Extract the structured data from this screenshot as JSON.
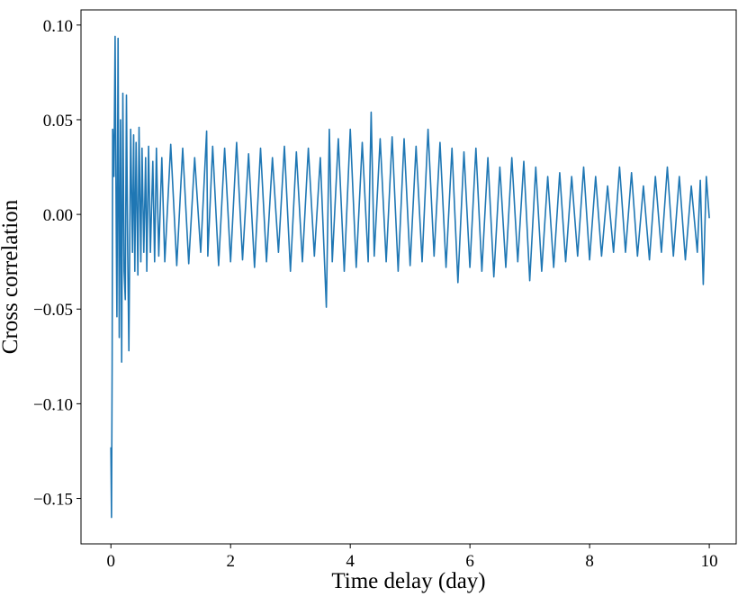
{
  "chart_data": {
    "type": "line",
    "title": "",
    "xlabel": "Time delay  (day)",
    "ylabel": "Cross correlation",
    "xlim": [
      -0.5,
      10.45
    ],
    "ylim": [
      -0.174,
      0.108
    ],
    "xticks": [
      0,
      2,
      4,
      6,
      8,
      10
    ],
    "xtick_labels": [
      "0",
      "2",
      "4",
      "6",
      "8",
      "10"
    ],
    "yticks": [
      -0.15,
      -0.1,
      -0.05,
      0.0,
      0.05,
      0.1
    ],
    "ytick_labels": [
      "−0.15",
      "−0.10",
      "−0.05",
      "0.00",
      "0.05",
      "0.10"
    ],
    "grid": false,
    "series": [
      {
        "color": "#1f77b4",
        "x": [
          0.0,
          0.01,
          0.02,
          0.03,
          0.05,
          0.07,
          0.09,
          0.1,
          0.12,
          0.14,
          0.16,
          0.18,
          0.2,
          0.22,
          0.24,
          0.26,
          0.28,
          0.3,
          0.33,
          0.36,
          0.38,
          0.4,
          0.42,
          0.45,
          0.47,
          0.5,
          0.52,
          0.55,
          0.58,
          0.6,
          0.63,
          0.66,
          0.7,
          0.73,
          0.76,
          0.8,
          0.85,
          0.9,
          1.0,
          1.1,
          1.2,
          1.3,
          1.4,
          1.5,
          1.6,
          1.62,
          1.7,
          1.8,
          1.9,
          2.0,
          2.1,
          2.2,
          2.3,
          2.4,
          2.5,
          2.6,
          2.7,
          2.8,
          2.9,
          3.0,
          3.1,
          3.2,
          3.3,
          3.4,
          3.5,
          3.6,
          3.65,
          3.7,
          3.8,
          3.9,
          4.0,
          4.1,
          4.2,
          4.3,
          4.35,
          4.4,
          4.5,
          4.6,
          4.7,
          4.8,
          4.9,
          5.0,
          5.1,
          5.2,
          5.3,
          5.4,
          5.5,
          5.6,
          5.7,
          5.8,
          5.9,
          6.0,
          6.1,
          6.2,
          6.3,
          6.4,
          6.5,
          6.6,
          6.7,
          6.8,
          6.9,
          7.0,
          7.1,
          7.2,
          7.3,
          7.4,
          7.5,
          7.6,
          7.7,
          7.8,
          7.9,
          8.0,
          8.1,
          8.2,
          8.3,
          8.4,
          8.5,
          8.6,
          8.7,
          8.8,
          8.9,
          9.0,
          9.1,
          9.2,
          9.3,
          9.4,
          9.5,
          9.6,
          9.7,
          9.8,
          9.85,
          9.9,
          9.95,
          10.0
        ],
        "values": [
          -0.123,
          -0.16,
          -0.08,
          0.045,
          0.02,
          0.094,
          -0.01,
          -0.054,
          0.093,
          -0.065,
          0.05,
          -0.078,
          0.064,
          -0.03,
          -0.045,
          0.063,
          -0.02,
          -0.072,
          0.045,
          -0.02,
          0.042,
          -0.03,
          0.038,
          -0.032,
          0.046,
          -0.025,
          0.035,
          -0.02,
          0.03,
          -0.03,
          0.036,
          -0.02,
          0.028,
          -0.025,
          0.035,
          -0.022,
          0.03,
          -0.025,
          0.037,
          -0.027,
          0.035,
          -0.026,
          0.03,
          -0.02,
          0.044,
          -0.022,
          0.036,
          -0.027,
          0.035,
          -0.025,
          0.038,
          -0.024,
          0.032,
          -0.028,
          0.035,
          -0.025,
          0.03,
          -0.02,
          0.036,
          -0.03,
          0.033,
          -0.025,
          0.035,
          -0.022,
          0.03,
          -0.049,
          0.045,
          -0.025,
          0.04,
          -0.03,
          0.045,
          -0.028,
          0.038,
          -0.025,
          0.054,
          -0.022,
          0.04,
          -0.025,
          0.041,
          -0.03,
          0.04,
          -0.027,
          0.036,
          -0.025,
          0.045,
          -0.022,
          0.038,
          -0.028,
          0.035,
          -0.036,
          0.033,
          -0.028,
          0.035,
          -0.03,
          0.03,
          -0.033,
          0.025,
          -0.028,
          0.03,
          -0.025,
          0.028,
          -0.035,
          0.025,
          -0.03,
          0.02,
          -0.028,
          0.022,
          -0.025,
          0.02,
          -0.022,
          0.025,
          -0.024,
          0.02,
          -0.022,
          0.015,
          -0.02,
          0.025,
          -0.02,
          0.022,
          -0.022,
          0.015,
          -0.024,
          0.02,
          -0.02,
          0.025,
          -0.022,
          0.02,
          -0.024,
          0.015,
          -0.02,
          0.018,
          -0.037,
          0.02,
          -0.002
        ]
      }
    ]
  }
}
